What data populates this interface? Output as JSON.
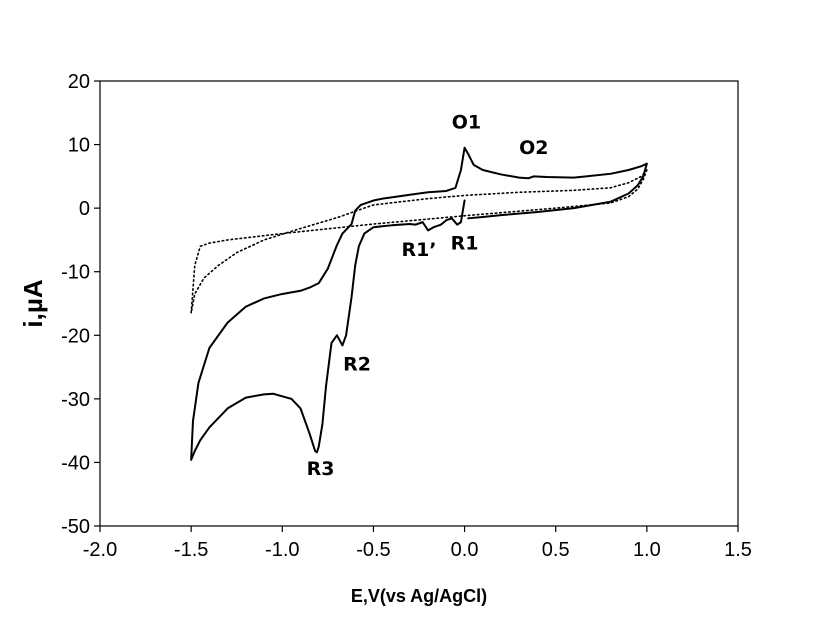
{
  "chart_data": {
    "type": "line",
    "title": "",
    "xlabel": "E,V(vs Ag/AgCl)",
    "ylabel": "i,µA",
    "xlim": [
      -2.0,
      1.5
    ],
    "ylim": [
      -50,
      20
    ],
    "xticks": [
      -2.0,
      -1.5,
      -1.0,
      -0.5,
      0.0,
      0.5,
      1.0,
      1.5
    ],
    "xtick_labels": [
      "-2.0",
      "-1.5",
      "-1.0",
      "-0.5",
      "0.0",
      "0.5",
      "1.0",
      "1.5"
    ],
    "yticks": [
      20,
      10,
      0,
      -10,
      -20,
      -30,
      -40,
      -50
    ],
    "ytick_labels": [
      "20",
      "10",
      "0",
      "-10",
      "-20",
      "-30",
      "-40",
      "-50"
    ],
    "grid": false,
    "legend": "none",
    "series": [
      {
        "style": "solid",
        "color": "#000000",
        "x": [
          0.0,
          -0.02,
          -0.04,
          -0.07,
          -0.1,
          -0.13,
          -0.17,
          -0.2,
          -0.23,
          -0.27,
          -0.3,
          -0.4,
          -0.5,
          -0.55,
          -0.58,
          -0.6,
          -0.62,
          -0.65,
          -0.67,
          -0.7,
          -0.73,
          -0.76,
          -0.78,
          -0.8,
          -0.81,
          -0.82,
          -0.85,
          -0.9,
          -0.95,
          -1.0,
          -1.05,
          -1.1,
          -1.2,
          -1.3,
          -1.4,
          -1.45,
          -1.48,
          -1.5,
          -1.49,
          -1.46,
          -1.4,
          -1.3,
          -1.2,
          -1.1,
          -1.0,
          -0.9,
          -0.85,
          -0.8,
          -0.75,
          -0.7,
          -0.67,
          -0.62,
          -0.6,
          -0.57,
          -0.53,
          -0.5,
          -0.45,
          -0.4,
          -0.3,
          -0.2,
          -0.1,
          -0.05,
          -0.02,
          0.0,
          0.02,
          0.05,
          0.1,
          0.2,
          0.3,
          0.35,
          0.38,
          0.45,
          0.6,
          0.8,
          0.9,
          0.97,
          1.0,
          0.98,
          0.95,
          0.9,
          0.8,
          0.6,
          0.4,
          0.2,
          0.1,
          0.02
        ],
        "y": [
          1.2,
          -2.2,
          -2.6,
          -1.6,
          -1.9,
          -2.6,
          -3.0,
          -3.5,
          -2.2,
          -2.6,
          -2.5,
          -2.7,
          -3.0,
          -4.0,
          -6.0,
          -9.0,
          -14.0,
          -20.0,
          -21.6,
          -20.0,
          -21.2,
          -28.0,
          -34.0,
          -37.5,
          -38.4,
          -38.2,
          -35.5,
          -31.5,
          -30.0,
          -29.6,
          -29.2,
          -29.3,
          -29.8,
          -31.5,
          -34.5,
          -36.5,
          -38.2,
          -39.6,
          -33.5,
          -27.5,
          -22.0,
          -18.0,
          -15.5,
          -14.2,
          -13.5,
          -13.0,
          -12.5,
          -11.8,
          -9.5,
          -5.8,
          -4.0,
          -2.5,
          -0.4,
          0.5,
          0.9,
          1.2,
          1.5,
          1.7,
          2.1,
          2.5,
          2.7,
          3.2,
          6.0,
          9.5,
          8.5,
          6.8,
          6.0,
          5.3,
          4.8,
          4.7,
          5.0,
          4.9,
          4.8,
          5.4,
          6.0,
          6.6,
          7.0,
          5.0,
          3.6,
          2.3,
          1.0,
          0.0,
          -0.6,
          -1.1,
          -1.4,
          -1.6
        ]
      },
      {
        "style": "dotted",
        "color": "#000000",
        "x": [
          1.0,
          0.98,
          0.95,
          0.9,
          0.8,
          0.5,
          0.0,
          -0.5,
          -1.0,
          -1.3,
          -1.4,
          -1.45,
          -1.48,
          -1.5,
          -1.48,
          -1.43,
          -1.35,
          -1.25,
          -1.1,
          -0.9,
          -0.7,
          -0.5,
          -0.2,
          0.0,
          0.3,
          0.6,
          0.8,
          0.9,
          0.97,
          1.0
        ],
        "y": [
          6.0,
          4.5,
          3.0,
          1.8,
          0.8,
          0.0,
          -1.2,
          -2.5,
          -4.0,
          -5.0,
          -5.5,
          -6.0,
          -9.0,
          -16.5,
          -13.5,
          -11.0,
          -9.0,
          -7.0,
          -5.0,
          -3.2,
          -1.5,
          0.5,
          1.5,
          2.0,
          2.5,
          2.8,
          3.2,
          4.0,
          5.0,
          6.0
        ]
      }
    ],
    "annotations": [
      {
        "text": "O1",
        "x": 0.01,
        "y": 12.5
      },
      {
        "text": "O2",
        "x": 0.38,
        "y": 8.5
      },
      {
        "text": "R1",
        "x": 0.0,
        "y": -6.5
      },
      {
        "text": "R1’",
        "x": -0.25,
        "y": -7.5
      },
      {
        "text": "R2",
        "x": -0.59,
        "y": -25.5
      },
      {
        "text": "R3",
        "x": -0.79,
        "y": -42.0
      }
    ]
  }
}
